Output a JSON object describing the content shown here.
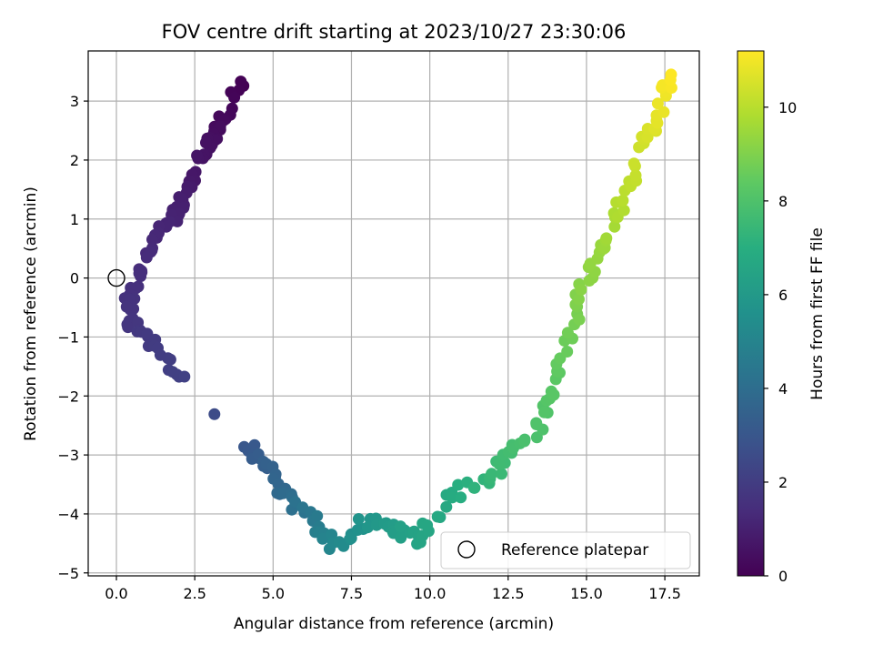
{
  "chart_data": {
    "type": "scatter",
    "title": "FOV centre drift starting at 2023/10/27 23:30:06",
    "xlabel": "Angular distance from reference (arcmin)",
    "ylabel": "Rotation from reference (arcmin)",
    "xlim": [
      -0.9,
      18.6
    ],
    "ylim": [
      -5.05,
      3.85
    ],
    "xticks": [
      0.0,
      2.5,
      5.0,
      7.5,
      10.0,
      12.5,
      15.0,
      17.5
    ],
    "xtick_labels": [
      "0.0",
      "2.5",
      "5.0",
      "7.5",
      "10.0",
      "12.5",
      "15.0",
      "17.5"
    ],
    "yticks": [
      -5,
      -4,
      -3,
      -2,
      -1,
      0,
      1,
      2,
      3
    ],
    "ytick_labels": [
      "−5",
      "−4",
      "−3",
      "−2",
      "−1",
      "0",
      "1",
      "2",
      "3"
    ],
    "grid": true,
    "colormap": "viridis",
    "colorbar": {
      "label": "Hours from first FF file",
      "range": [
        0,
        11.2
      ],
      "ticks": [
        0,
        2,
        4,
        6,
        8,
        10
      ],
      "tick_labels": [
        "0",
        "2",
        "4",
        "6",
        "8",
        "10"
      ]
    },
    "legend": {
      "position": "lower-right",
      "entries": [
        "Reference platepar"
      ]
    },
    "reference_point": {
      "x": 0.0,
      "y": 0.0,
      "marker": "open-circle"
    },
    "drift_path_samples": [
      {
        "x": 4.0,
        "y": 3.3,
        "hours": 0.0
      },
      {
        "x": 3.3,
        "y": 2.6,
        "hours": 0.3
      },
      {
        "x": 3.0,
        "y": 2.35,
        "hours": 0.45
      },
      {
        "x": 2.65,
        "y": 2.05,
        "hours": 0.6
      },
      {
        "x": 2.2,
        "y": 1.4,
        "hours": 0.9
      },
      {
        "x": 1.9,
        "y": 1.05,
        "hours": 1.05
      },
      {
        "x": 1.3,
        "y": 0.65,
        "hours": 1.25
      },
      {
        "x": 0.75,
        "y": 0.08,
        "hours": 1.45
      },
      {
        "x": 0.4,
        "y": -0.35,
        "hours": 1.6
      },
      {
        "x": 0.5,
        "y": -0.75,
        "hours": 1.75
      },
      {
        "x": 1.3,
        "y": -1.2,
        "hours": 1.95
      },
      {
        "x": 2.1,
        "y": -1.7,
        "hours": 2.15
      },
      {
        "x": 4.1,
        "y": -2.85,
        "hours": 3.0
      },
      {
        "x": 4.8,
        "y": -3.2,
        "hours": 3.4
      },
      {
        "x": 5.3,
        "y": -3.68,
        "hours": 3.8
      },
      {
        "x": 6.2,
        "y": -4.05,
        "hours": 4.5
      },
      {
        "x": 7.0,
        "y": -4.55,
        "hours": 5.2
      },
      {
        "x": 8.0,
        "y": -4.15,
        "hours": 5.8
      },
      {
        "x": 9.0,
        "y": -4.25,
        "hours": 6.2
      },
      {
        "x": 9.6,
        "y": -4.45,
        "hours": 6.5
      },
      {
        "x": 10.6,
        "y": -3.7,
        "hours": 6.8
      },
      {
        "x": 12.0,
        "y": -3.35,
        "hours": 7.4
      },
      {
        "x": 12.5,
        "y": -3.0,
        "hours": 7.7
      },
      {
        "x": 13.5,
        "y": -2.5,
        "hours": 8.0
      },
      {
        "x": 14.0,
        "y": -1.8,
        "hours": 8.3
      },
      {
        "x": 14.5,
        "y": -0.8,
        "hours": 8.8
      },
      {
        "x": 15.0,
        "y": 0.0,
        "hours": 9.2
      },
      {
        "x": 15.5,
        "y": 0.6,
        "hours": 9.5
      },
      {
        "x": 16.2,
        "y": 1.4,
        "hours": 10.0
      },
      {
        "x": 16.8,
        "y": 2.2,
        "hours": 10.4
      },
      {
        "x": 17.3,
        "y": 2.8,
        "hours": 10.8
      },
      {
        "x": 17.7,
        "y": 3.45,
        "hours": 11.2
      }
    ]
  }
}
